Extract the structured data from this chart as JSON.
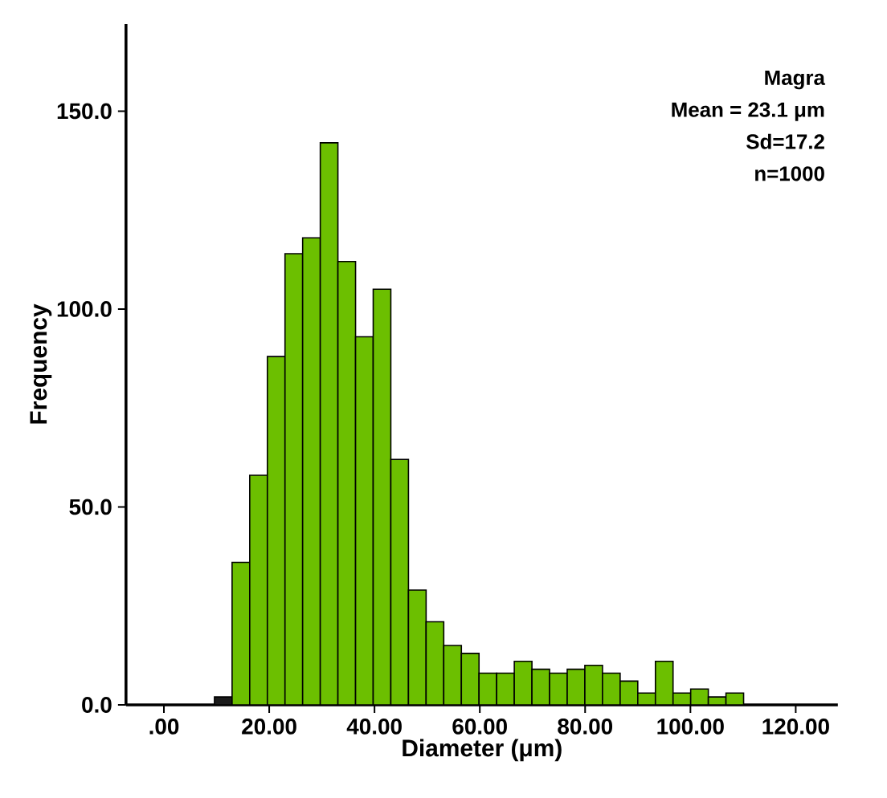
{
  "chart_data": {
    "type": "histogram",
    "xlabel": "Diameter (μm)",
    "ylabel": "Frequency",
    "annotations": [
      "Magra",
      "Mean = 23.1 μm",
      "Sd=17.2",
      "n=1000"
    ],
    "bins": [
      9.6,
      12.95,
      16.3,
      19.65,
      23.0,
      26.35,
      29.7,
      33.05,
      36.4,
      39.75,
      43.1,
      46.45,
      49.8,
      53.15,
      56.5,
      59.85,
      63.2,
      66.55,
      69.9,
      73.25,
      76.6,
      79.95,
      83.3,
      86.65,
      90.0,
      93.35,
      96.7,
      100.05,
      103.4,
      106.75,
      110.1
    ],
    "values": [
      2,
      36,
      58,
      88,
      114,
      118,
      142,
      112,
      93,
      105,
      62,
      29,
      21,
      15,
      13,
      8,
      8,
      11,
      9,
      8,
      9,
      10,
      8,
      6,
      3,
      11,
      3,
      4,
      2,
      3
    ],
    "colors": [
      "#1a1a1a",
      "#6cbf00",
      "#6cbf00",
      "#6cbf00",
      "#6cbf00",
      "#6cbf00",
      "#6cbf00",
      "#6cbf00",
      "#6cbf00",
      "#6cbf00",
      "#6cbf00",
      "#6cbf00",
      "#6cbf00",
      "#6cbf00",
      "#6cbf00",
      "#6cbf00",
      "#6cbf00",
      "#6cbf00",
      "#6cbf00",
      "#6cbf00",
      "#6cbf00",
      "#6cbf00",
      "#6cbf00",
      "#6cbf00",
      "#6cbf00",
      "#6cbf00",
      "#6cbf00",
      "#6cbf00",
      "#6cbf00",
      "#6cbf00"
    ],
    "xlim": [
      -7.2,
      128
    ],
    "xticks": [
      {
        "value": 0,
        "label": ".00"
      },
      {
        "value": 20,
        "label": "20.00"
      },
      {
        "value": 40,
        "label": "40.00"
      },
      {
        "value": 60,
        "label": "60.00"
      },
      {
        "value": 80,
        "label": "80.00"
      },
      {
        "value": 100,
        "label": "100.00"
      },
      {
        "value": 120,
        "label": "120.00"
      }
    ],
    "ylim": [
      0,
      172
    ],
    "yticks": [
      {
        "value": 0,
        "label": "0.0"
      },
      {
        "value": 50,
        "label": "50.0"
      },
      {
        "value": 100,
        "label": "100.0"
      },
      {
        "value": 150,
        "label": "150.0"
      }
    ],
    "grid": false
  }
}
